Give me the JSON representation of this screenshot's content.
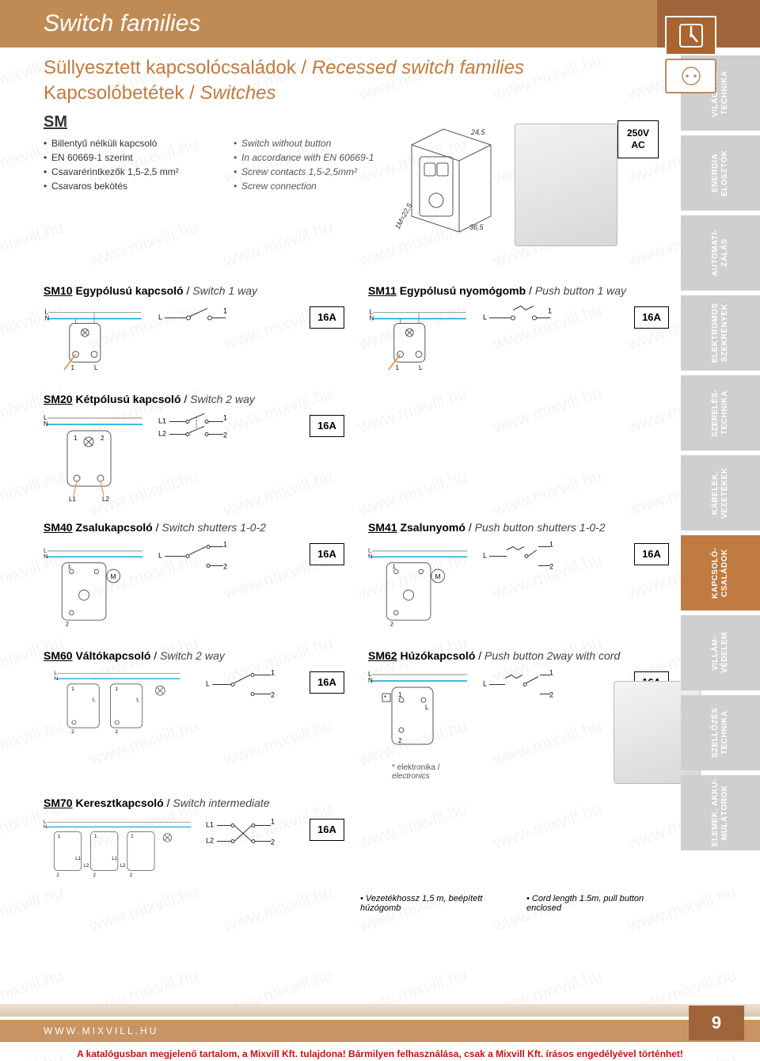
{
  "watermark": "www.mixvill.hu",
  "header": {
    "title": "Switch families"
  },
  "subtitle": {
    "line1_hu": "Süllyesztett kapcsolócsaládok",
    "line1_en": "Recessed switch families",
    "line2_hu": "Kapcsolóbetétek",
    "line2_en": "Switches"
  },
  "series_code": "SM",
  "bullets_hu": [
    "Billentyű nélküli kapcsoló",
    "EN 60669-1 szerint",
    "Csavarérintkezők 1,5-2,5 mm²",
    "Csavaros bekötés"
  ],
  "bullets_en": [
    "Switch without button",
    "In accordance with EN 60669-1",
    "Screw contacts 1,5-2,5mm²",
    "Screw connection"
  ],
  "rating": {
    "line1": "250V",
    "line2": "AC"
  },
  "tech_drawing": {
    "w": "24,5",
    "d": "36,5",
    "module": "1M=22,5"
  },
  "products": [
    {
      "code": "SM10",
      "hu": "Egypólusú kapcsoló",
      "en": "Switch 1 way",
      "amp": "16A",
      "layout": "half",
      "schematic": "s1",
      "symbol": "sw1"
    },
    {
      "code": "SM11",
      "hu": "Egypólusú nyomógomb",
      "en": "Push button 1 way",
      "amp": "16A",
      "layout": "half",
      "schematic": "s1",
      "symbol": "pb1"
    },
    {
      "code": "SM20",
      "hu": "Kétpólusú kapcsoló",
      "en": "Switch 2 way",
      "amp": "16A",
      "layout": "half",
      "schematic": "s2",
      "symbol": "sw2p"
    },
    {
      "code": "",
      "hu": "",
      "en": "",
      "amp": "",
      "layout": "half",
      "schematic": "none",
      "symbol": "none"
    },
    {
      "code": "SM40",
      "hu": "Zsalukapcsoló",
      "en": "Switch shutters 1-0-2",
      "amp": "16A",
      "layout": "half",
      "schematic": "shut",
      "symbol": "sw102"
    },
    {
      "code": "SM41",
      "hu": "Zsalunyomó",
      "en": "Push button shutters 1-0-2",
      "amp": "16A",
      "layout": "half",
      "schematic": "shut",
      "symbol": "pb102"
    },
    {
      "code": "SM60",
      "hu": "Váltókapcsoló",
      "en": "Switch 2 way",
      "amp": "16A",
      "layout": "half",
      "schematic": "alt",
      "symbol": "sw2w"
    },
    {
      "code": "SM62",
      "hu": "Húzókapcsoló",
      "en": "Push button 2way with cord",
      "amp": "16A",
      "layout": "half",
      "schematic": "cord",
      "symbol": "pb2w",
      "note_hu": "* elektronika /",
      "note_en": "electronics",
      "has_photo": true
    },
    {
      "code": "SM70",
      "hu": "Keresztkapcsoló",
      "en": "Switch intermediate",
      "amp": "16A",
      "layout": "half",
      "schematic": "inter",
      "symbol": "swint"
    }
  ],
  "cord": {
    "hu": "• Vezetékhossz 1,5 m, beépített húzógomb",
    "en": "• Cord length 1.5m, pull button enclosed"
  },
  "side_tabs": [
    {
      "label": "VILÁGÍTÁS-\nTECHNIKA",
      "active": false
    },
    {
      "label": "ENERGIA\nELOSZTÓK",
      "active": false
    },
    {
      "label": "AUTOMATI-\nZÁLÁS",
      "active": false
    },
    {
      "label": "ELEKTROMOS\nSZEKRÉNYEK",
      "active": false
    },
    {
      "label": "SZERELÉS-\nTECHNIKA",
      "active": false
    },
    {
      "label": "KÁBELEK,\nVEZETÉKEK",
      "active": false
    },
    {
      "label": "KAPCSOLÓ-\nCSALÁDOK",
      "active": true
    },
    {
      "label": "VILLÁM-\nVÉDELEM",
      "active": false
    },
    {
      "label": "SZELLŐZÉS\nTECHNIKA",
      "active": false
    },
    {
      "label": "ELEMEK, AKKU-\nMULÁTOROK",
      "active": false
    }
  ],
  "footer": {
    "url": "WWW.MIXVILL.HU",
    "page": "9"
  },
  "legal": "A katalógusban megjelenő tartalom, a Mixvill Kft. tulajdona! Bármilyen felhasználása, csak a Mixvill Kft. írásos engedélyével történhet!",
  "colors": {
    "brand": "#bf7b41",
    "brand_dark": "#a0643a",
    "brand_light": "#c99463",
    "tab_grey": "#cfcfd0",
    "wire_blue": "#00a3e0",
    "wire_orange": "#f08030",
    "wire_grey": "#888",
    "legal_red": "#c01515"
  },
  "schem_labels": {
    "L": "L",
    "N": "N",
    "L1": "L1",
    "L2": "L2",
    "one": "1",
    "two": "2"
  }
}
